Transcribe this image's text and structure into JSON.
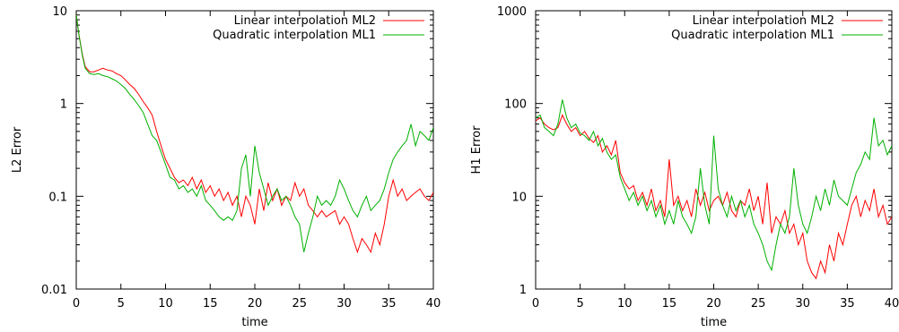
{
  "chart_data": [
    {
      "type": "line",
      "xlabel": "time",
      "ylabel": "L2 Error",
      "xlim": [
        0,
        40
      ],
      "ylim": [
        0.01,
        10
      ],
      "yscale": "log",
      "xticks": [
        0,
        5,
        10,
        15,
        20,
        25,
        30,
        35,
        40
      ],
      "xtick_labels": [
        "0",
        "5",
        "10",
        "15",
        "20",
        "25",
        "30",
        "35",
        "40"
      ],
      "yticks": [
        0.01,
        0.1,
        1,
        10
      ],
      "ytick_labels": [
        "0.01",
        "0.1",
        "1",
        "10"
      ],
      "legend_position": "top-right",
      "grid": false,
      "series": [
        {
          "name": "Linear interpolation ML2",
          "color": "#ff0000",
          "x": [
            0,
            0.3,
            0.7,
            1,
            1.5,
            2,
            2.5,
            3,
            3.5,
            4,
            4.5,
            5,
            5.5,
            6,
            6.5,
            7,
            7.5,
            8,
            8.5,
            9,
            9.5,
            10,
            10.5,
            11,
            11.5,
            12,
            12.5,
            13,
            13.5,
            14,
            14.5,
            15,
            15.5,
            16,
            16.5,
            17,
            17.5,
            18,
            18.5,
            19,
            19.5,
            20,
            20.5,
            21,
            21.5,
            22,
            22.5,
            23,
            23.5,
            24,
            24.5,
            25,
            25.5,
            26,
            26.5,
            27,
            27.5,
            28,
            28.5,
            29,
            29.5,
            30,
            30.5,
            31,
            31.5,
            32,
            32.5,
            33,
            33.5,
            34,
            34.5,
            35,
            35.5,
            36,
            36.5,
            37,
            37.5,
            38,
            38.5,
            39,
            39.5,
            40
          ],
          "values": [
            9.0,
            5.5,
            3.3,
            2.5,
            2.2,
            2.2,
            2.3,
            2.4,
            2.3,
            2.25,
            2.1,
            2.0,
            1.8,
            1.6,
            1.45,
            1.25,
            1.05,
            0.9,
            0.75,
            0.5,
            0.35,
            0.25,
            0.2,
            0.16,
            0.14,
            0.15,
            0.13,
            0.16,
            0.12,
            0.15,
            0.11,
            0.13,
            0.1,
            0.12,
            0.09,
            0.11,
            0.08,
            0.1,
            0.06,
            0.1,
            0.08,
            0.05,
            0.12,
            0.07,
            0.14,
            0.09,
            0.12,
            0.08,
            0.1,
            0.09,
            0.14,
            0.1,
            0.12,
            0.08,
            0.07,
            0.06,
            0.07,
            0.06,
            0.065,
            0.07,
            0.05,
            0.06,
            0.05,
            0.035,
            0.025,
            0.035,
            0.03,
            0.025,
            0.04,
            0.03,
            0.05,
            0.1,
            0.15,
            0.1,
            0.12,
            0.09,
            0.1,
            0.11,
            0.12,
            0.1,
            0.09,
            0.11
          ]
        },
        {
          "name": "Quadratic interpolation ML1",
          "color": "#00b000",
          "x": [
            0,
            0.3,
            0.7,
            1,
            1.5,
            2,
            2.5,
            3,
            3.5,
            4,
            4.5,
            5,
            5.5,
            6,
            6.5,
            7,
            7.5,
            8,
            8.5,
            9,
            9.5,
            10,
            10.5,
            11,
            11.5,
            12,
            12.5,
            13,
            13.5,
            14,
            14.5,
            15,
            15.5,
            16,
            16.5,
            17,
            17.5,
            18,
            18.5,
            19,
            19.5,
            20,
            20.5,
            21,
            21.5,
            22,
            22.5,
            23,
            23.5,
            24,
            24.5,
            25,
            25.5,
            26,
            26.5,
            27,
            27.5,
            28,
            28.5,
            29,
            29.5,
            30,
            30.5,
            31,
            31.5,
            32,
            32.5,
            33,
            33.5,
            34,
            34.5,
            35,
            35.5,
            36,
            36.5,
            37,
            37.5,
            38,
            38.5,
            39,
            39.5,
            40
          ],
          "values": [
            9.0,
            5.5,
            3.2,
            2.4,
            2.1,
            2.05,
            2.1,
            2.0,
            1.95,
            1.85,
            1.75,
            1.6,
            1.45,
            1.25,
            1.1,
            0.95,
            0.8,
            0.6,
            0.45,
            0.4,
            0.3,
            0.22,
            0.16,
            0.15,
            0.12,
            0.13,
            0.11,
            0.12,
            0.1,
            0.13,
            0.09,
            0.08,
            0.07,
            0.06,
            0.055,
            0.06,
            0.055,
            0.07,
            0.2,
            0.28,
            0.1,
            0.35,
            0.18,
            0.12,
            0.08,
            0.1,
            0.12,
            0.09,
            0.1,
            0.08,
            0.06,
            0.05,
            0.025,
            0.04,
            0.06,
            0.1,
            0.08,
            0.09,
            0.08,
            0.1,
            0.15,
            0.12,
            0.09,
            0.07,
            0.06,
            0.08,
            0.1,
            0.07,
            0.08,
            0.09,
            0.12,
            0.18,
            0.25,
            0.3,
            0.35,
            0.4,
            0.6,
            0.35,
            0.5,
            0.45,
            0.4,
            0.55
          ]
        }
      ]
    },
    {
      "type": "line",
      "xlabel": "time",
      "ylabel": "H1 Error",
      "xlim": [
        0,
        40
      ],
      "ylim": [
        1,
        1000
      ],
      "yscale": "log",
      "xticks": [
        0,
        5,
        10,
        15,
        20,
        25,
        30,
        35,
        40
      ],
      "xtick_labels": [
        "0",
        "5",
        "10",
        "15",
        "20",
        "25",
        "30",
        "35",
        "40"
      ],
      "yticks": [
        1,
        10,
        100,
        1000
      ],
      "ytick_labels": [
        "1",
        "10",
        "100",
        "1000"
      ],
      "legend_position": "top-right",
      "grid": false,
      "series": [
        {
          "name": "Linear interpolation ML2",
          "color": "#ff0000",
          "x": [
            0,
            0.5,
            1,
            1.5,
            2,
            2.5,
            3,
            3.5,
            4,
            4.5,
            5,
            5.5,
            6,
            6.5,
            7,
            7.5,
            8,
            8.5,
            9,
            9.5,
            10,
            10.5,
            11,
            11.5,
            12,
            12.5,
            13,
            13.5,
            14,
            14.5,
            15,
            15.5,
            16,
            16.5,
            17,
            17.5,
            18,
            18.5,
            19,
            19.5,
            20,
            20.5,
            21,
            21.5,
            22,
            22.5,
            23,
            23.5,
            24,
            24.5,
            25,
            25.5,
            26,
            26.5,
            27,
            27.5,
            28,
            28.5,
            29,
            29.5,
            30,
            30.5,
            31,
            31.5,
            32,
            32.5,
            33,
            33.5,
            34,
            34.5,
            35,
            35.5,
            36,
            36.5,
            37,
            37.5,
            38,
            38.5,
            39,
            39.5,
            40
          ],
          "values": [
            65,
            70,
            60,
            55,
            52,
            55,
            75,
            60,
            50,
            55,
            45,
            50,
            42,
            38,
            45,
            30,
            35,
            28,
            40,
            18,
            14,
            12,
            13,
            9,
            11,
            8,
            12,
            7,
            9,
            6,
            25,
            8,
            10,
            7,
            9,
            6,
            12,
            8,
            11,
            7,
            9,
            10,
            8,
            11,
            7,
            6,
            9,
            8,
            12,
            7,
            10,
            5,
            14,
            4,
            6,
            5,
            7,
            4,
            5,
            3,
            4,
            2,
            1.5,
            1.3,
            2,
            1.5,
            3,
            2,
            4,
            3,
            5,
            8,
            10,
            6,
            9,
            7,
            12,
            6,
            8,
            5,
            6
          ]
        },
        {
          "name": "Quadratic interpolation ML1",
          "color": "#00b000",
          "x": [
            0,
            0.5,
            1,
            1.5,
            2,
            2.5,
            3,
            3.5,
            4,
            4.5,
            5,
            5.5,
            6,
            6.5,
            7,
            7.5,
            8,
            8.5,
            9,
            9.5,
            10,
            10.5,
            11,
            11.5,
            12,
            12.5,
            13,
            13.5,
            14,
            14.5,
            15,
            15.5,
            16,
            16.5,
            17,
            17.5,
            18,
            18.5,
            19,
            19.5,
            20,
            20.5,
            21,
            21.5,
            22,
            22.5,
            23,
            23.5,
            24,
            24.5,
            25,
            25.5,
            26,
            26.5,
            27,
            27.5,
            28,
            28.5,
            29,
            29.5,
            30,
            30.5,
            31,
            31.5,
            32,
            32.5,
            33,
            33.5,
            34,
            34.5,
            35,
            35.5,
            36,
            36.5,
            37,
            37.5,
            38,
            38.5,
            39,
            39.5,
            40
          ],
          "values": [
            70,
            75,
            55,
            50,
            45,
            60,
            110,
            70,
            55,
            60,
            48,
            45,
            40,
            50,
            35,
            42,
            30,
            25,
            28,
            16,
            12,
            9,
            11,
            8,
            10,
            7,
            9,
            6,
            8,
            5,
            7,
            5,
            9,
            6,
            5,
            4,
            6,
            20,
            8,
            5,
            45,
            12,
            8,
            6,
            10,
            7,
            9,
            6,
            8,
            5,
            4,
            3,
            2,
            1.6,
            3,
            5,
            4,
            6,
            20,
            8,
            5,
            4,
            6,
            10,
            7,
            12,
            8,
            15,
            10,
            9,
            8,
            12,
            18,
            22,
            30,
            25,
            70,
            35,
            40,
            28,
            35
          ]
        }
      ]
    }
  ]
}
